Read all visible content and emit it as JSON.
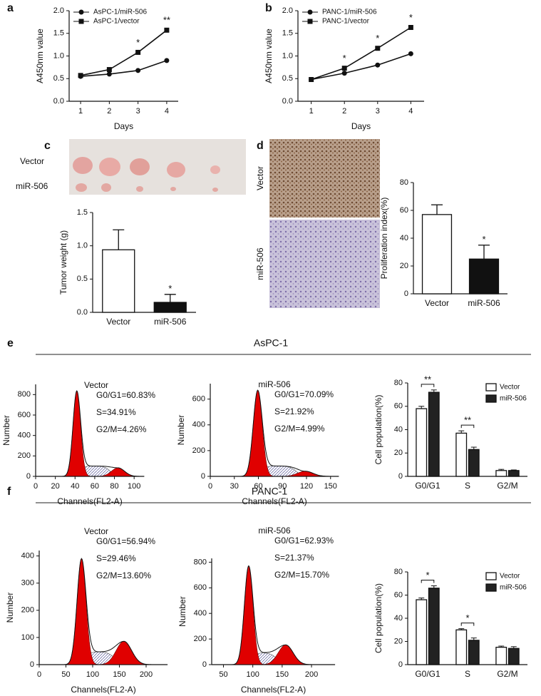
{
  "panel_labels": [
    "a",
    "b",
    "c",
    "d",
    "e",
    "f"
  ],
  "section_titles": [
    "AsPC-1",
    "PANC-1"
  ],
  "photo_labels": {
    "c": [
      "Vector",
      "miR-506"
    ],
    "d": [
      "Vector",
      "miR-506"
    ]
  },
  "chart_data": [
    {
      "type": "line",
      "xlabel": "Days",
      "ylabel": "A450nm value",
      "x": [
        1,
        2,
        3,
        4
      ],
      "xlim": [
        0.6,
        4.4
      ],
      "xticks": [
        1,
        2,
        3,
        4
      ],
      "ylim": [
        0,
        2
      ],
      "yticks": [
        {
          "value": 0,
          "label": "0.0"
        },
        {
          "value": 0.5,
          "label": "0.5"
        },
        {
          "value": 1,
          "label": "1.0"
        },
        {
          "value": 1.5,
          "label": "1.5"
        },
        {
          "value": 2,
          "label": "2.0"
        }
      ],
      "series": [
        {
          "name": "AsPC-1/miR-506",
          "color": "#111111",
          "marker": "circle",
          "values": [
            0.55,
            0.6,
            0.68,
            0.9
          ]
        },
        {
          "name": "AsPC-1/vector",
          "color": "#111111",
          "marker": "square",
          "values": [
            0.57,
            0.7,
            1.08,
            1.57
          ]
        }
      ],
      "annotations": [
        null,
        null,
        "*",
        "**"
      ]
    },
    {
      "type": "line",
      "xlabel": "Days",
      "ylabel": "A450nm value",
      "x": [
        1,
        2,
        3,
        4
      ],
      "xlim": [
        0.6,
        4.4
      ],
      "xticks": [
        1,
        2,
        3,
        4
      ],
      "ylim": [
        0,
        2
      ],
      "yticks": [
        {
          "value": 0,
          "label": "0.0"
        },
        {
          "value": 0.5,
          "label": "0.5"
        },
        {
          "value": 1,
          "label": "1.0"
        },
        {
          "value": 1.5,
          "label": "1.5"
        },
        {
          "value": 2,
          "label": "2.0"
        }
      ],
      "series": [
        {
          "name": "PANC-1/miR-506",
          "color": "#111111",
          "marker": "circle",
          "values": [
            0.48,
            0.62,
            0.8,
            1.05
          ]
        },
        {
          "name": "PANC-1/vector",
          "color": "#111111",
          "marker": "square",
          "values": [
            0.48,
            0.73,
            1.17,
            1.63
          ]
        }
      ],
      "annotations": [
        null,
        "*",
        "*",
        "*"
      ]
    },
    {
      "type": "bar",
      "ylabel": "Tumor weight (g)",
      "categories": [
        "Vector",
        "miR-506"
      ],
      "values": [
        0.94,
        0.15
      ],
      "errors": [
        0.3,
        0.12
      ],
      "colors": [
        "#ffffff",
        "#111111"
      ],
      "ylim": [
        0,
        1.5
      ],
      "yticks": [
        {
          "value": 0,
          "label": "0.0"
        },
        {
          "value": 0.5,
          "label": "0.5"
        },
        {
          "value": 1,
          "label": "1.0"
        },
        {
          "value": 1.5,
          "label": "1.5"
        }
      ],
      "annotations": [
        null,
        "*"
      ]
    },
    {
      "type": "bar",
      "ylabel": "Proliferation index(%)",
      "categories": [
        "Vector",
        "miR-506"
      ],
      "values": [
        57,
        25
      ],
      "errors": [
        7,
        10
      ],
      "colors": [
        "#ffffff",
        "#111111"
      ],
      "ylim": [
        0,
        80
      ],
      "yticks": [
        0,
        20,
        40,
        60,
        80
      ],
      "annotations": [
        null,
        "*"
      ]
    },
    {
      "type": "flow",
      "title": "Vector",
      "xlabel": "Channels(FL2-A)",
      "ylabel": "Number",
      "xlim": [
        0,
        110
      ],
      "xticks": [
        0,
        20,
        40,
        60,
        80,
        100
      ],
      "ylim": [
        0,
        900
      ],
      "yticks": [
        0,
        200,
        400,
        600,
        800
      ],
      "annotations": [
        "G0/G1=60.83%",
        "S=34.91%",
        "G2/M=4.26%"
      ]
    },
    {
      "type": "flow",
      "title": "miR-506",
      "xlabel": "Channels(FL2-A)",
      "ylabel": "Number",
      "xlim": [
        0,
        160
      ],
      "xticks": [
        0,
        30,
        60,
        90,
        120,
        150
      ],
      "ylim": [
        0,
        720
      ],
      "yticks": [
        0,
        200,
        400,
        600
      ],
      "annotations": [
        "G0/G1=70.09%",
        "S=21.92%",
        "G2/M=4.99%"
      ]
    },
    {
      "type": "grouped_bar",
      "ylabel": "Cell population(%)",
      "categories": [
        "G0/G1",
        "S",
        "G2/M"
      ],
      "ylim": [
        0,
        80
      ],
      "yticks": [
        0,
        20,
        40,
        60,
        80
      ],
      "series": [
        {
          "name": "Vector",
          "color": "#ffffff",
          "values": [
            58,
            37,
            5
          ],
          "errors": [
            2,
            2,
            1
          ]
        },
        {
          "name": "miR-506",
          "color": "#222222",
          "values": [
            72,
            23,
            5
          ],
          "errors": [
            2,
            2,
            0.5
          ]
        }
      ],
      "annotations": [
        "**",
        "**",
        null
      ]
    },
    {
      "type": "flow",
      "title": "Vector",
      "xlabel": "Channels(FL2-A)",
      "ylabel": "Number",
      "xlim": [
        0,
        240
      ],
      "xticks": [
        0,
        50,
        100,
        150,
        200
      ],
      "ylim": [
        0,
        420
      ],
      "yticks": [
        0,
        100,
        200,
        300,
        400
      ],
      "annotations": [
        "G0/G1=56.94%",
        "S=29.46%",
        "G2/M=13.60%"
      ]
    },
    {
      "type": "flow",
      "title": "miR-506",
      "xlabel": "Channels(FL2-A)",
      "ylabel": "Number",
      "xlim": [
        30,
        240
      ],
      "xticks": [
        50,
        100,
        150,
        200
      ],
      "ylim": [
        0,
        830
      ],
      "yticks": [
        0,
        200,
        400,
        600,
        800
      ],
      "annotations": [
        "G0/G1=62.93%",
        "S=21.37%",
        "G2/M=15.70%"
      ]
    },
    {
      "type": "grouped_bar",
      "ylabel": "Cell population(%)",
      "categories": [
        "G0/G1",
        "S",
        "G2/M"
      ],
      "ylim": [
        0,
        80
      ],
      "yticks": [
        0,
        20,
        40,
        60,
        80
      ],
      "series": [
        {
          "name": "Vector",
          "color": "#ffffff",
          "values": [
            56,
            30,
            15
          ],
          "errors": [
            1.5,
            1,
            1
          ]
        },
        {
          "name": "miR-506",
          "color": "#222222",
          "values": [
            66,
            21,
            14
          ],
          "errors": [
            2,
            2,
            1.5
          ]
        }
      ],
      "annotations": [
        "*",
        "*",
        null
      ]
    }
  ]
}
